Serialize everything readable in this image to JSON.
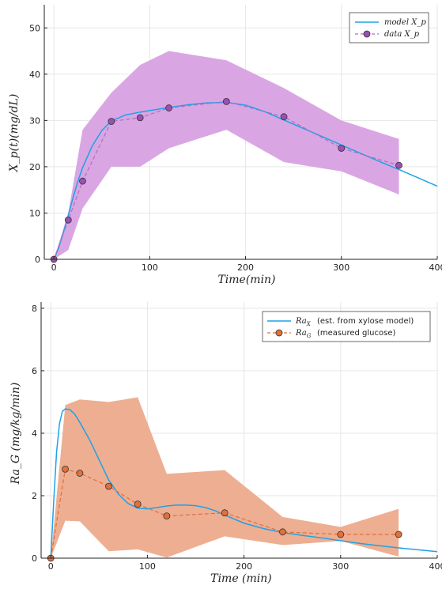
{
  "chart_data": [
    {
      "type": "line",
      "xlabel": "Time(min)",
      "ylabel": "X_p(t)(mg/dL)",
      "xlim": [
        -10,
        400
      ],
      "ylim": [
        0,
        55
      ],
      "xticks": [
        "0",
        "100",
        "200",
        "300",
        "400"
      ],
      "yticks": [
        "0",
        "10",
        "20",
        "30",
        "40",
        "50"
      ],
      "grid": true,
      "legend_position": "top-right",
      "legend": {
        "model": "model X_p",
        "data": "data X_p"
      },
      "colors": {
        "model": "#1fa2e6",
        "data_marker": "#9b4fb3",
        "band": "#d9a6e3",
        "data_line": "#b06fbf"
      },
      "series": [
        {
          "name": "model X_p",
          "kind": "model",
          "x": [
            0,
            5,
            10,
            15,
            20,
            25,
            30,
            40,
            50,
            60,
            75,
            90,
            105,
            120,
            140,
            160,
            180,
            200,
            220,
            240,
            260,
            280,
            300,
            320,
            340,
            360,
            380,
            400
          ],
          "y": [
            0,
            2.5,
            5.8,
            9.5,
            13.3,
            16.8,
            19.8,
            24.5,
            27.8,
            29.9,
            31.2,
            31.8,
            32.3,
            32.8,
            33.4,
            33.8,
            33.9,
            33.3,
            31.9,
            30.1,
            28.3,
            26.5,
            24.7,
            22.9,
            21.1,
            19.4,
            17.6,
            15.8
          ]
        },
        {
          "name": "data X_p",
          "kind": "data",
          "x": [
            0,
            15,
            30,
            60,
            90,
            120,
            180,
            240,
            300,
            360
          ],
          "y": [
            0,
            8.5,
            16.9,
            29.8,
            30.6,
            32.7,
            34.1,
            30.8,
            24,
            20.3
          ],
          "lower": [
            0,
            2,
            11,
            20,
            20,
            24,
            28,
            21,
            19,
            14
          ],
          "upper": [
            0,
            10,
            28,
            36,
            42,
            45,
            43,
            37,
            30,
            26
          ]
        }
      ]
    },
    {
      "type": "line",
      "xlabel": "Time (min)",
      "ylabel": "Ra_G (mg/kg/min)",
      "xlim": [
        -10,
        400
      ],
      "ylim": [
        0,
        8.2
      ],
      "xticks": [
        "0",
        "100",
        "200",
        "300",
        "400"
      ],
      "yticks": [
        "0",
        "2",
        "4",
        "6",
        "8"
      ],
      "grid": true,
      "legend_position": "top-right",
      "legend": {
        "model": "(est. from xylose model)",
        "data": "(measured glucose)",
        "model_sym": "Ra",
        "model_sub": "X",
        "data_sym": "Ra",
        "data_sub": "G"
      },
      "colors": {
        "model": "#1fa2e6",
        "data_marker": "#e2703a",
        "band": "#eeae92",
        "data_line": "#e2703a"
      },
      "series": [
        {
          "name": "Ra_X (est. from xylose model)",
          "kind": "model",
          "x": [
            0,
            3,
            6,
            9,
            12,
            15,
            20,
            25,
            30,
            40,
            50,
            60,
            70,
            80,
            90,
            100,
            110,
            120,
            130,
            140,
            150,
            160,
            170,
            180,
            200,
            220,
            240,
            260,
            280,
            300,
            320,
            340,
            360,
            380,
            400
          ],
          "y": [
            0,
            1.8,
            3.4,
            4.3,
            4.7,
            4.78,
            4.75,
            4.6,
            4.35,
            3.8,
            3.15,
            2.5,
            2.05,
            1.75,
            1.6,
            1.58,
            1.62,
            1.67,
            1.7,
            1.7,
            1.68,
            1.62,
            1.52,
            1.38,
            1.12,
            0.95,
            0.82,
            0.73,
            0.65,
            0.56,
            0.47,
            0.4,
            0.33,
            0.27,
            0.21
          ]
        },
        {
          "name": "Ra_G (measured glucose)",
          "kind": "data",
          "x": [
            0,
            15,
            30,
            60,
            90,
            120,
            180,
            240,
            300,
            360
          ],
          "y": [
            0,
            2.85,
            2.72,
            2.3,
            1.73,
            1.35,
            1.45,
            0.84,
            0.76,
            0.76
          ],
          "lower": [
            0,
            1.2,
            1.18,
            0.22,
            0.28,
            0.02,
            0.7,
            0.42,
            0.55,
            0.05
          ],
          "upper": [
            0,
            4.9,
            5.08,
            5.0,
            5.15,
            2.7,
            2.82,
            1.32,
            1.0,
            1.58
          ]
        }
      ]
    }
  ]
}
